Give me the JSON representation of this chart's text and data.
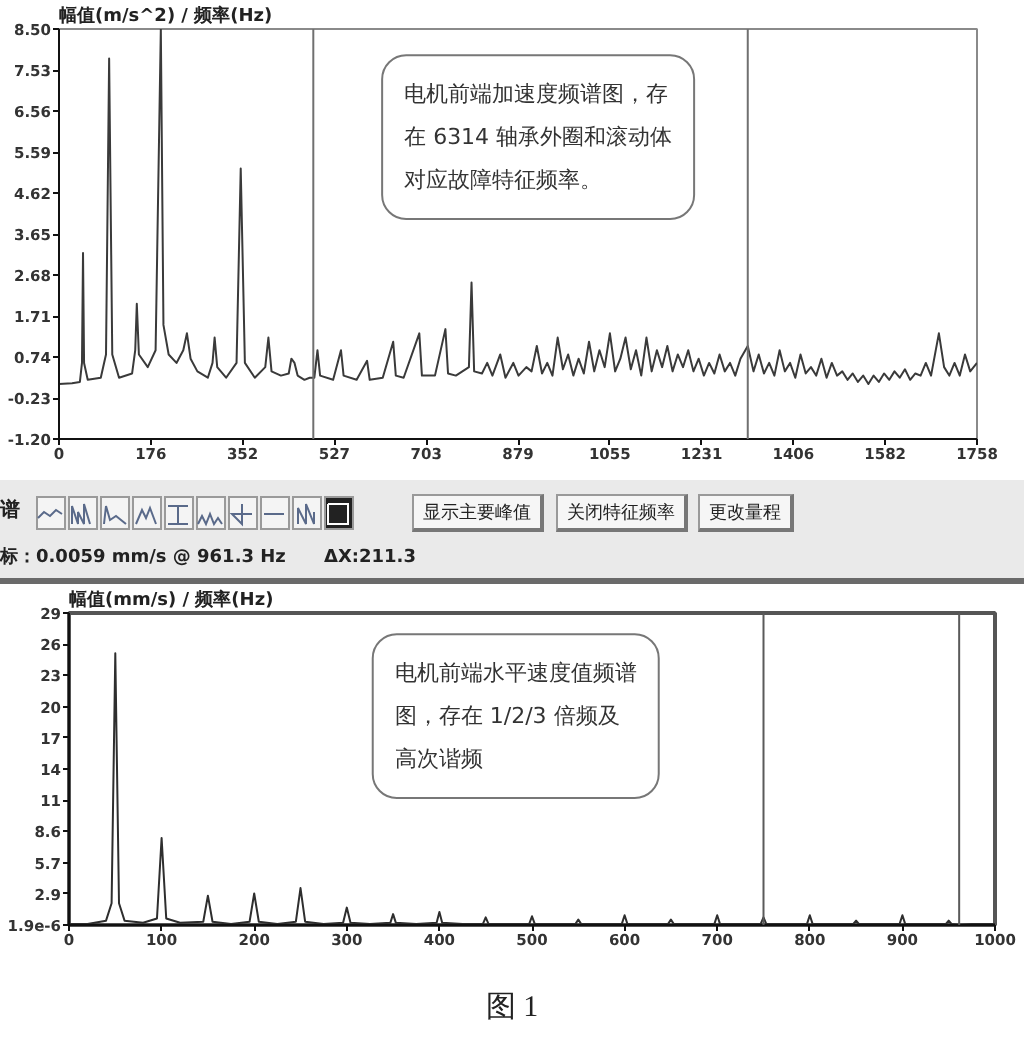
{
  "chart_data": [
    {
      "type": "line",
      "ylabel": "幅值(m/s^2) / 频率(Hz)",
      "x": [
        0,
        25,
        40,
        44,
        46,
        48,
        55,
        80,
        90,
        96,
        102,
        115,
        140,
        146,
        149,
        153,
        170,
        185,
        195,
        200,
        210,
        225,
        238,
        245,
        252,
        265,
        285,
        294,
        298,
        303,
        320,
        340,
        348,
        356,
        375,
        395,
        401,
        407,
        425,
        440,
        445,
        451,
        457,
        470,
        480,
        489,
        495,
        500,
        525,
        540,
        545,
        570,
        590,
        595,
        620,
        640,
        645,
        660,
        690,
        695,
        720,
        740,
        745,
        760,
        785,
        790,
        795,
        810,
        820,
        830,
        845,
        855,
        870,
        880,
        895,
        905,
        915,
        925,
        935,
        945,
        955,
        965,
        975,
        985,
        995,
        1005,
        1015,
        1025,
        1035,
        1045,
        1055,
        1065,
        1075,
        1085,
        1095,
        1105,
        1115,
        1125,
        1135,
        1145,
        1155,
        1165,
        1175,
        1185,
        1195,
        1205,
        1215,
        1225,
        1235,
        1245,
        1255,
        1265,
        1275,
        1285,
        1295,
        1305,
        1319,
        1330,
        1340,
        1350,
        1360,
        1370,
        1380,
        1390,
        1400,
        1410,
        1420,
        1430,
        1440,
        1450,
        1460,
        1470,
        1480,
        1490,
        1500,
        1510,
        1520,
        1530,
        1540,
        1550,
        1560,
        1570,
        1580,
        1590,
        1600,
        1610,
        1620,
        1630,
        1640,
        1650,
        1660,
        1670,
        1685,
        1695,
        1705,
        1715,
        1725,
        1735,
        1745,
        1758
      ],
      "series": [
        {
          "color": "#3a3a3a",
          "values": [
            0.1,
            0.12,
            0.15,
            0.6,
            3.2,
            0.6,
            0.2,
            0.25,
            0.8,
            7.8,
            0.8,
            0.25,
            0.35,
            0.9,
            2.0,
            0.8,
            0.5,
            0.9,
            8.5,
            1.5,
            0.8,
            0.6,
            0.9,
            1.3,
            0.7,
            0.4,
            0.25,
            0.6,
            1.2,
            0.5,
            0.25,
            0.6,
            5.2,
            0.6,
            0.25,
            0.5,
            1.2,
            0.4,
            0.3,
            0.35,
            0.7,
            0.6,
            0.3,
            0.2,
            0.25,
            0.25,
            0.9,
            0.3,
            0.2,
            0.9,
            0.3,
            0.2,
            0.65,
            0.2,
            0.25,
            1.1,
            0.3,
            0.25,
            1.3,
            0.3,
            0.3,
            1.4,
            0.35,
            0.3,
            0.5,
            2.5,
            0.4,
            0.35,
            0.6,
            0.3,
            0.8,
            0.25,
            0.6,
            0.3,
            0.5,
            0.4,
            1.0,
            0.35,
            0.6,
            0.3,
            1.2,
            0.45,
            0.8,
            0.3,
            0.7,
            0.35,
            1.1,
            0.4,
            0.9,
            0.5,
            1.3,
            0.4,
            0.7,
            1.2,
            0.45,
            0.9,
            0.3,
            1.2,
            0.4,
            0.9,
            0.5,
            1.0,
            0.4,
            0.8,
            0.5,
            0.9,
            0.4,
            0.7,
            0.3,
            0.6,
            0.35,
            0.8,
            0.4,
            0.6,
            0.3,
            0.7,
            1.0,
            0.4,
            0.8,
            0.35,
            0.6,
            0.3,
            0.9,
            0.4,
            0.6,
            0.25,
            0.8,
            0.35,
            0.5,
            0.3,
            0.7,
            0.25,
            0.6,
            0.3,
            0.4,
            0.2,
            0.35,
            0.15,
            0.3,
            0.1,
            0.3,
            0.15,
            0.35,
            0.2,
            0.4,
            0.25,
            0.45,
            0.2,
            0.35,
            0.3,
            0.6,
            0.3,
            1.3,
            0.5,
            0.3,
            0.6,
            0.3,
            0.8,
            0.4,
            0.6
          ]
        }
      ],
      "xlim": [
        0,
        1758
      ],
      "xticks": [
        0,
        {
          "value": 175.8,
          "label": "176"
        },
        {
          "value": 351.6,
          "label": "352"
        },
        {
          "value": 527.4,
          "label": "527"
        },
        {
          "value": 703.2,
          "label": "703"
        },
        879,
        {
          "value": 1054.8,
          "label": "1055"
        },
        {
          "value": 1230.6,
          "label": "1231"
        },
        {
          "value": 1406.4,
          "label": "1406"
        },
        {
          "value": 1582.2,
          "label": "1582"
        },
        1758
      ],
      "ylim": [
        -1.2,
        8.5
      ],
      "yticks": [
        {
          "value": -1.2,
          "label": "-1.20"
        },
        {
          "value": -0.23,
          "label": "-0.23"
        },
        0.74,
        1.71,
        2.68,
        3.65,
        4.62,
        5.59,
        6.56,
        7.53,
        {
          "value": 8.5,
          "label": "8.50"
        }
      ],
      "ref_lines": [
        {
          "axis": "x",
          "value": 487,
          "color": "#707070"
        },
        {
          "axis": "x",
          "value": 1319,
          "color": "#707070"
        }
      ],
      "annotations": [
        "电机前端加速度频谱图，存在 6314 轴承外圈和滚动体对应故障特征频率。"
      ]
    },
    {
      "type": "line",
      "ylabel": "幅值(mm/s) / 频率(Hz)",
      "x": [
        0,
        20,
        40,
        46,
        50,
        54,
        60,
        80,
        95,
        100,
        105,
        120,
        145,
        150,
        155,
        175,
        195,
        200,
        205,
        225,
        245,
        250,
        255,
        275,
        296,
        300,
        304,
        325,
        347,
        350,
        353,
        375,
        397,
        400,
        403,
        425,
        447,
        450,
        453,
        475,
        497,
        500,
        503,
        525,
        547,
        550,
        553,
        575,
        597,
        600,
        603,
        625,
        647,
        650,
        653,
        675,
        697,
        700,
        703,
        725,
        747,
        750,
        753,
        775,
        797,
        800,
        803,
        825,
        847,
        850,
        853,
        875,
        897,
        900,
        903,
        925,
        947,
        950,
        953,
        961.3,
        975,
        1000
      ],
      "series": [
        {
          "color": "#2e2e2e",
          "values": [
            0.1,
            0.1,
            0.4,
            2.0,
            25,
            2.0,
            0.4,
            0.2,
            0.6,
            8.0,
            0.6,
            0.2,
            0.3,
            2.7,
            0.3,
            0.1,
            0.3,
            2.9,
            0.3,
            0.1,
            0.3,
            3.4,
            0.3,
            0.1,
            0.2,
            1.6,
            0.2,
            0.1,
            0.2,
            1.0,
            0.2,
            0.1,
            0.2,
            1.2,
            0.2,
            0.1,
            0.1,
            0.7,
            0.1,
            0.1,
            0.1,
            0.8,
            0.1,
            0.1,
            0.1,
            0.5,
            0.1,
            0.1,
            0.1,
            0.9,
            0.1,
            0.1,
            0.1,
            0.5,
            0.1,
            0.1,
            0.1,
            0.9,
            0.1,
            0.1,
            0.1,
            0.7,
            0.1,
            0.1,
            0.1,
            0.9,
            0.1,
            0.1,
            0.1,
            0.4,
            0.1,
            0.1,
            0.1,
            0.9,
            0.1,
            0.1,
            0.1,
            0.4,
            0.1,
            0.0059,
            0.1,
            0.1
          ]
        }
      ],
      "xlim": [
        0,
        1000
      ],
      "xticks": [
        0,
        100,
        200,
        300,
        400,
        500,
        600,
        700,
        800,
        900,
        1000
      ],
      "ylim": [
        1.9e-06,
        28.7
      ],
      "yticks": [
        {
          "value": 1.9e-06,
          "label": "1.9e-6"
        },
        {
          "value": 2.87,
          "label": "2.9"
        },
        {
          "value": 5.74,
          "label": "5.7"
        },
        {
          "value": 8.61,
          "label": "8.6"
        },
        {
          "value": 11.48,
          "label": "11"
        },
        {
          "value": 14.35,
          "label": "14"
        },
        {
          "value": 17.22,
          "label": "17"
        },
        {
          "value": 20.09,
          "label": "20"
        },
        {
          "value": 22.96,
          "label": "23"
        },
        {
          "value": 25.83,
          "label": "26"
        },
        {
          "value": 28.7,
          "label": "29"
        }
      ],
      "ref_lines": [
        {
          "axis": "x",
          "value": 750,
          "color": "#5a5a5a"
        },
        {
          "axis": "x",
          "value": 961.3,
          "color": "#5a5a5a"
        }
      ],
      "annotations": [
        "谱",
        "显示主要峰值",
        "关闭特征频率",
        "更改量程",
        "标：0.0059 mm/s @ 961.3 Hz",
        "ΔX:211.3",
        "电机前端水平速度值频谱图，存在 1/2/3 倍频及高次谐频",
        "图 1"
      ]
    }
  ]
}
